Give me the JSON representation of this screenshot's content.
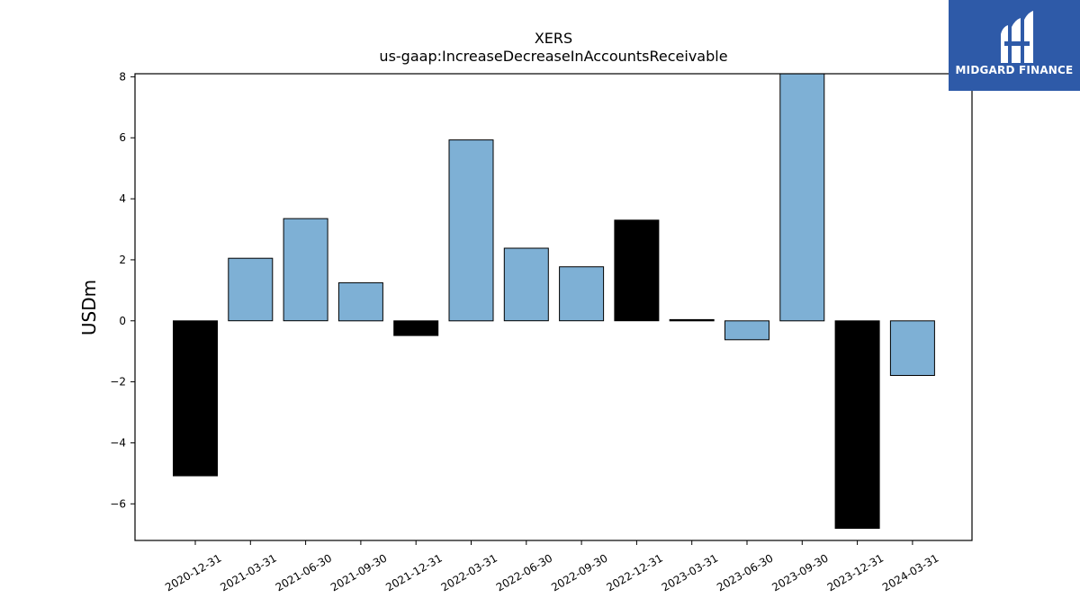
{
  "chart_data": {
    "type": "bar",
    "title": "XERS",
    "subtitle": "us-gaap:IncreaseDecreaseInAccountsReceivable",
    "ylabel": "USDm",
    "xlabel": "",
    "ylim": [
      -7.2,
      8.1
    ],
    "yticks": [
      8,
      6,
      4,
      2,
      0,
      -2,
      -4,
      -6
    ],
    "categories": [
      "2020-12-31",
      "2021-03-31",
      "2021-06-30",
      "2021-09-30",
      "2021-12-31",
      "2022-03-31",
      "2022-06-30",
      "2022-09-30",
      "2022-12-31",
      "2023-03-31",
      "2023-06-30",
      "2023-09-30",
      "2023-12-31",
      "2024-03-31"
    ],
    "values": [
      -5.08,
      2.05,
      3.35,
      1.25,
      -0.48,
      5.93,
      2.38,
      1.77,
      3.3,
      0.04,
      -0.62,
      8.1,
      -6.8,
      -1.79
    ],
    "bar_colors": [
      "#000000",
      "#7eb0d5",
      "#7eb0d5",
      "#7eb0d5",
      "#000000",
      "#7eb0d5",
      "#7eb0d5",
      "#7eb0d5",
      "#000000",
      "#000000",
      "#7eb0d5",
      "#7eb0d5",
      "#000000",
      "#7eb0d5"
    ],
    "grid": false
  },
  "logo": {
    "text": "MIDGARD FINANCE",
    "background": "#2e5aa8"
  }
}
